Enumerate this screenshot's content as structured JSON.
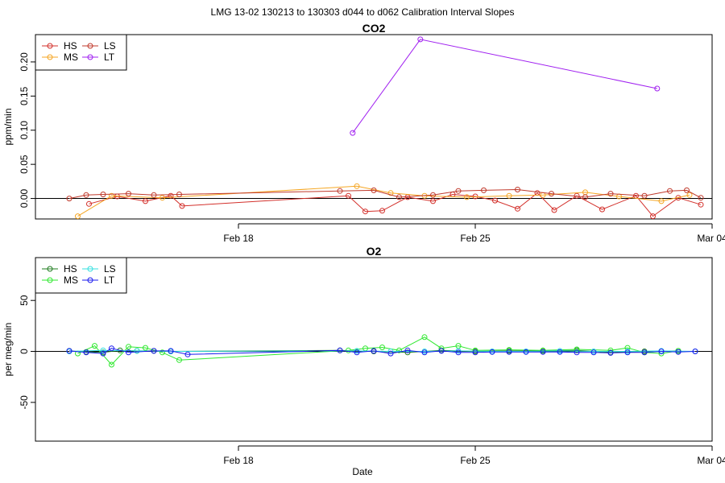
{
  "figure_title": "LMG  13-02    130213 to 130303    d044 to d062   Calibration Interval Slopes",
  "x_axis_label": "Date",
  "chart_data": [
    {
      "type": "line",
      "title": "CO2",
      "ylabel": "ppm/min",
      "xlabel": "",
      "xlim": [
        "2013-02-12",
        "2013-03-04"
      ],
      "xticks": [
        {
          "date": "2013-02-18",
          "label": "Feb 18"
        },
        {
          "date": "2013-02-25",
          "label": "Feb 25"
        },
        {
          "date": "2013-03-04",
          "label": "Mar 04"
        }
      ],
      "ylim": [
        -0.03,
        0.24
      ],
      "yticks": [
        {
          "value": 0.0,
          "label": "0.00"
        },
        {
          "value": 0.05,
          "label": "0.05"
        },
        {
          "value": 0.1,
          "label": "0.10"
        },
        {
          "value": 0.15,
          "label": "0.15"
        },
        {
          "value": 0.2,
          "label": "0.20"
        }
      ],
      "hline": 0,
      "legend": {
        "position": "top-left",
        "columns": 2
      },
      "series": [
        {
          "name": "HS",
          "color": "#d3302b",
          "points": [
            [
              "2013-02-13T14:00",
              -0.008
            ],
            [
              "2013-02-14T10:00",
              0.003
            ],
            [
              "2013-02-15T06:00",
              -0.004
            ],
            [
              "2013-02-16T00:00",
              0.004
            ],
            [
              "2013-02-16T08:00",
              -0.011
            ],
            [
              "2013-02-21T06:00",
              0.004
            ],
            [
              "2013-02-21T18:00",
              -0.019
            ],
            [
              "2013-02-22T06:00",
              -0.018
            ],
            [
              "2013-02-23T00:00",
              0.002
            ],
            [
              "2013-02-23T18:00",
              -0.004
            ],
            [
              "2013-02-24T08:00",
              0.006
            ],
            [
              "2013-02-25T00:00",
              0.003
            ],
            [
              "2013-02-25T14:00",
              -0.003
            ],
            [
              "2013-02-26T06:00",
              -0.015
            ],
            [
              "2013-02-26T20:00",
              0.008
            ],
            [
              "2013-02-27T08:00",
              -0.017
            ],
            [
              "2013-02-28T00:00",
              0.004
            ],
            [
              "2013-02-28T18:00",
              -0.016
            ],
            [
              "2013-03-01T18:00",
              0.004
            ],
            [
              "2013-03-02T06:00",
              -0.026
            ],
            [
              "2013-03-03T00:00",
              0.001
            ],
            [
              "2013-03-03T16:00",
              -0.009
            ]
          ]
        },
        {
          "name": "MS",
          "color": "#f5a623",
          "points": [
            [
              "2013-02-13T06:00",
              -0.026
            ],
            [
              "2013-02-14T06:00",
              0.004
            ],
            [
              "2013-02-15T18:00",
              0.001
            ],
            [
              "2013-02-21T12:00",
              0.018
            ],
            [
              "2013-02-22T12:00",
              0.008
            ],
            [
              "2013-02-23T12:00",
              0.004
            ],
            [
              "2013-02-24T18:00",
              0.002
            ],
            [
              "2013-02-26T00:00",
              0.004
            ],
            [
              "2013-02-27T00:00",
              0.005
            ],
            [
              "2013-02-28T06:00",
              0.009
            ],
            [
              "2013-03-01T06:00",
              0.003
            ],
            [
              "2013-03-02T12:00",
              -0.004
            ],
            [
              "2013-03-03T08:00",
              0.005
            ]
          ]
        },
        {
          "name": "LS",
          "color": "#c0392b",
          "points": [
            [
              "2013-02-13T00:00",
              0.0
            ],
            [
              "2013-02-13T12:00",
              0.005
            ],
            [
              "2013-02-14T00:00",
              0.006
            ],
            [
              "2013-02-14T18:00",
              0.007
            ],
            [
              "2013-02-15T12:00",
              0.005
            ],
            [
              "2013-02-16T06:00",
              0.006
            ],
            [
              "2013-02-21T00:00",
              0.011
            ],
            [
              "2013-02-22T00:00",
              0.012
            ],
            [
              "2013-02-22T18:00",
              0.002
            ],
            [
              "2013-02-23T18:00",
              0.005
            ],
            [
              "2013-02-24T12:00",
              0.011
            ],
            [
              "2013-02-25T06:00",
              0.012
            ],
            [
              "2013-02-26T06:00",
              0.013
            ],
            [
              "2013-02-27T06:00",
              0.007
            ],
            [
              "2013-02-28T06:00",
              0.002
            ],
            [
              "2013-03-01T00:00",
              0.007
            ],
            [
              "2013-03-02T00:00",
              0.004
            ],
            [
              "2013-03-02T18:00",
              0.011
            ],
            [
              "2013-03-03T06:00",
              0.012
            ],
            [
              "2013-03-03T16:00",
              0.001
            ]
          ]
        },
        {
          "name": "LT",
          "color": "#a020f0",
          "points": [
            [
              "2013-02-21T09:00",
              0.096
            ],
            [
              "2013-02-23T09:00",
              0.233
            ],
            [
              "2013-03-02T09:00",
              0.161
            ]
          ]
        }
      ]
    },
    {
      "type": "line",
      "title": "O2",
      "ylabel": "per meg/min",
      "xlabel": "Date",
      "xlim": [
        "2013-02-12",
        "2013-03-04"
      ],
      "xticks": [
        {
          "date": "2013-02-18",
          "label": "Feb 18"
        },
        {
          "date": "2013-02-25",
          "label": "Feb 25"
        },
        {
          "date": "2013-03-04",
          "label": "Mar 04"
        }
      ],
      "ylim": [
        -88,
        92
      ],
      "yticks": [
        {
          "value": -50,
          "label": "-50"
        },
        {
          "value": 0,
          "label": "0"
        },
        {
          "value": 50,
          "label": "50"
        }
      ],
      "hline": 0,
      "legend": {
        "position": "top-left",
        "columns": 2
      },
      "series": [
        {
          "name": "HS",
          "color": "#1e7b1e",
          "points": [
            [
              "2013-02-13T00:00",
              0.5
            ],
            [
              "2013-02-13T12:00",
              -0.5
            ],
            [
              "2013-02-14T00:00",
              -1
            ],
            [
              "2013-02-14T12:00",
              1
            ],
            [
              "2013-02-15T00:00",
              0.5
            ],
            [
              "2013-02-15T12:00",
              0.5
            ],
            [
              "2013-02-16T00:00",
              0
            ],
            [
              "2013-02-21T00:00",
              1
            ],
            [
              "2013-02-22T00:00",
              0
            ],
            [
              "2013-02-23T00:00",
              -1
            ],
            [
              "2013-02-24T00:00",
              1
            ],
            [
              "2013-02-25T00:00",
              0
            ],
            [
              "2013-02-26T00:00",
              0.5
            ],
            [
              "2013-02-27T00:00",
              0.5
            ],
            [
              "2013-02-28T00:00",
              1
            ],
            [
              "2013-03-01T00:00",
              -1
            ],
            [
              "2013-03-02T00:00",
              0
            ],
            [
              "2013-03-03T00:00",
              0.5
            ]
          ]
        },
        {
          "name": "MS",
          "color": "#2ee82e",
          "points": [
            [
              "2013-02-13T06:00",
              -2
            ],
            [
              "2013-02-13T18:00",
              5.5
            ],
            [
              "2013-02-14T06:00",
              -13
            ],
            [
              "2013-02-14T18:00",
              4.5
            ],
            [
              "2013-02-15T06:00",
              3.5
            ],
            [
              "2013-02-15T18:00",
              -1
            ],
            [
              "2013-02-16T06:00",
              -8.5
            ],
            [
              "2013-02-21T06:00",
              1
            ],
            [
              "2013-02-21T18:00",
              3
            ],
            [
              "2013-02-22T06:00",
              4
            ],
            [
              "2013-02-22T18:00",
              1
            ],
            [
              "2013-02-23T12:00",
              14
            ],
            [
              "2013-02-24T00:00",
              3
            ],
            [
              "2013-02-24T12:00",
              5.5
            ],
            [
              "2013-02-25T00:00",
              1
            ],
            [
              "2013-02-26T00:00",
              1.5
            ],
            [
              "2013-02-27T00:00",
              1
            ],
            [
              "2013-02-28T00:00",
              2
            ],
            [
              "2013-03-01T00:00",
              1
            ],
            [
              "2013-03-01T12:00",
              3.5
            ],
            [
              "2013-03-02T00:00",
              -1
            ],
            [
              "2013-03-02T12:00",
              -2
            ],
            [
              "2013-03-03T00:00",
              0.5
            ]
          ]
        },
        {
          "name": "LS",
          "color": "#33e0e0",
          "points": [
            [
              "2013-02-13T00:00",
              0
            ],
            [
              "2013-02-14T00:00",
              1
            ],
            [
              "2013-02-15T00:00",
              0.5
            ],
            [
              "2013-02-16T00:00",
              0
            ],
            [
              "2013-02-21T12:00",
              0.5
            ],
            [
              "2013-02-22T12:00",
              0
            ],
            [
              "2013-02-23T12:00",
              0
            ],
            [
              "2013-02-24T12:00",
              0.5
            ],
            [
              "2013-02-25T12:00",
              0
            ],
            [
              "2013-02-26T12:00",
              0
            ],
            [
              "2013-02-27T12:00",
              0.5
            ],
            [
              "2013-02-28T12:00",
              0
            ],
            [
              "2013-03-01T12:00",
              0
            ],
            [
              "2013-03-02T12:00",
              0.5
            ],
            [
              "2013-03-03T12:00",
              0
            ]
          ]
        },
        {
          "name": "LT",
          "color": "#1a1aee",
          "points": [
            [
              "2013-02-13T00:00",
              0.5
            ],
            [
              "2013-02-13T12:00",
              -1
            ],
            [
              "2013-02-14T00:00",
              -2
            ],
            [
              "2013-02-14T06:00",
              3
            ],
            [
              "2013-02-14T18:00",
              -1
            ],
            [
              "2013-02-15T12:00",
              0.5
            ],
            [
              "2013-02-16T00:00",
              0.5
            ],
            [
              "2013-02-16T12:00",
              -3
            ],
            [
              "2013-02-21T00:00",
              1
            ],
            [
              "2013-02-21T12:00",
              -1
            ],
            [
              "2013-02-22T00:00",
              0.5
            ],
            [
              "2013-02-22T12:00",
              -2
            ],
            [
              "2013-02-23T00:00",
              1
            ],
            [
              "2013-02-23T12:00",
              -1
            ],
            [
              "2013-02-24T00:00",
              0.5
            ],
            [
              "2013-02-24T12:00",
              -1
            ],
            [
              "2013-02-25T00:00",
              -1
            ],
            [
              "2013-02-25T12:00",
              -0.5
            ],
            [
              "2013-02-26T00:00",
              -0.5
            ],
            [
              "2013-02-26T12:00",
              -0.5
            ],
            [
              "2013-02-27T00:00",
              -0.5
            ],
            [
              "2013-02-27T12:00",
              -0.5
            ],
            [
              "2013-02-28T00:00",
              -1
            ],
            [
              "2013-02-28T12:00",
              -1
            ],
            [
              "2013-03-01T00:00",
              -1.5
            ],
            [
              "2013-03-01T12:00",
              -1
            ],
            [
              "2013-03-02T00:00",
              -1
            ],
            [
              "2013-03-02T12:00",
              0
            ],
            [
              "2013-03-03T00:00",
              -0.5
            ],
            [
              "2013-03-03T12:00",
              0
            ]
          ]
        }
      ]
    }
  ]
}
